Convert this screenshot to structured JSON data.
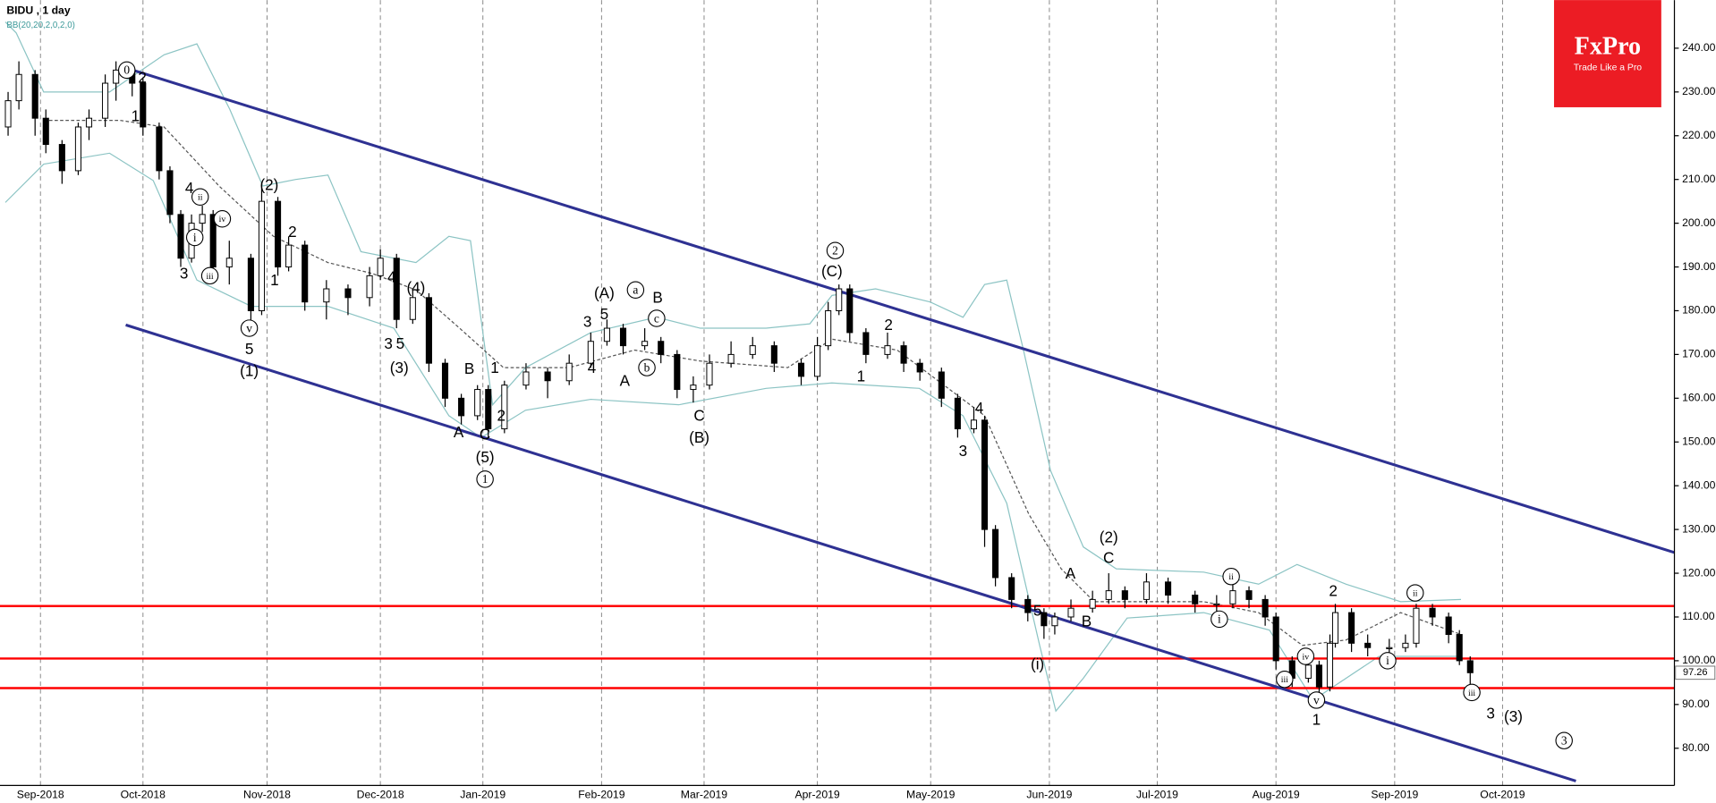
{
  "chart_data": {
    "type": "candlestick",
    "title": "BIDU , 1 day",
    "subtitle": "BB(20,20,2,0,2,0)",
    "x": [
      -6,
      -4,
      -1,
      1,
      4,
      7,
      9,
      12,
      14,
      17,
      19,
      22,
      24,
      26,
      28,
      30,
      32,
      35,
      39,
      41,
      44,
      46,
      49,
      53,
      57,
      61,
      63,
      66,
      69,
      72,
      75,
      78,
      81,
      83,
      86,
      90,
      94,
      98,
      102,
      105,
      108,
      112,
      115,
      118,
      121,
      124,
      128,
      132,
      136,
      141,
      144,
      146,
      148,
      150,
      153,
      157,
      160,
      163,
      167,
      170,
      173,
      175,
      177,
      180,
      183,
      186,
      188,
      191,
      195,
      198,
      201,
      205,
      209,
      214,
      218,
      221,
      224,
      227,
      229,
      232,
      235,
      237,
      239,
      240,
      243,
      246,
      250,
      253,
      255,
      258,
      261,
      263,
      265
    ],
    "open": [
      222,
      228,
      234,
      224,
      218,
      212,
      222,
      224,
      232,
      235,
      232,
      222,
      212,
      202,
      192,
      200,
      202,
      190,
      192,
      180,
      205,
      190,
      195,
      182,
      185,
      183,
      188,
      192,
      178,
      183,
      168,
      160,
      156,
      162,
      153,
      163,
      166,
      164,
      168,
      173,
      176,
      172,
      173,
      170,
      162,
      163,
      168,
      170,
      172,
      168,
      165,
      172,
      180,
      185,
      175,
      170,
      172,
      168,
      166,
      160,
      153,
      155,
      130,
      119,
      114,
      111,
      108,
      110,
      112,
      114,
      116,
      114,
      118,
      115,
      113,
      113,
      116,
      114,
      110,
      100,
      96,
      99,
      94,
      104,
      111,
      104,
      103,
      103,
      104,
      112,
      110,
      106,
      100
    ],
    "high": [
      230,
      237,
      235,
      226,
      219,
      223,
      226,
      234,
      237,
      236,
      233,
      223,
      213,
      203,
      202,
      204,
      203,
      196,
      193,
      208,
      206,
      197,
      196,
      187,
      186,
      190,
      194,
      193,
      185,
      184,
      169,
      161,
      163,
      163,
      164,
      168,
      167,
      170,
      175,
      178,
      177,
      176,
      174,
      171,
      165,
      170,
      173,
      174,
      173,
      169,
      174,
      182,
      186,
      186,
      176,
      175,
      173,
      169,
      167,
      161,
      158,
      156,
      131,
      120,
      115,
      112,
      111,
      114,
      116,
      120,
      117,
      120,
      119,
      116,
      115,
      118,
      117,
      115,
      111,
      101,
      100,
      100,
      106,
      113,
      112,
      106,
      105,
      106,
      113,
      113,
      111,
      107,
      101
    ],
    "low": [
      220,
      226,
      220,
      216,
      209,
      211,
      219,
      222,
      228,
      229,
      220,
      210,
      200,
      190,
      191,
      198,
      188,
      186,
      177,
      179,
      188,
      189,
      180,
      178,
      179,
      181,
      187,
      176,
      177,
      166,
      158,
      154,
      155,
      151,
      152,
      162,
      160,
      163,
      167,
      172,
      170,
      171,
      168,
      160,
      159,
      162,
      167,
      169,
      166,
      163,
      164,
      171,
      179,
      173,
      168,
      169,
      166,
      164,
      158,
      151,
      152,
      126,
      117,
      112,
      109,
      105,
      106,
      109,
      111,
      113,
      112,
      113,
      113,
      111,
      111,
      112,
      112,
      108,
      98,
      94,
      95,
      92,
      93,
      103,
      102,
      101,
      101,
      102,
      103,
      108,
      104,
      99,
      93
    ],
    "close": [
      228,
      234,
      224,
      218,
      212,
      222,
      224,
      232,
      235,
      232,
      222,
      212,
      202,
      192,
      200,
      202,
      190,
      192,
      180,
      205,
      190,
      195,
      182,
      185,
      183,
      188,
      192,
      178,
      183,
      168,
      160,
      156,
      162,
      153,
      163,
      166,
      164,
      168,
      173,
      176,
      172,
      173,
      170,
      162,
      163,
      168,
      170,
      172,
      168,
      165,
      172,
      180,
      185,
      175,
      170,
      172,
      168,
      166,
      160,
      153,
      155,
      130,
      119,
      114,
      111,
      108,
      110,
      112,
      114,
      116,
      114,
      118,
      115,
      113,
      113,
      116,
      114,
      110,
      100,
      96,
      99,
      94,
      104,
      111,
      104,
      103,
      103,
      104,
      112,
      110,
      106,
      100,
      97.26
    ],
    "up_color": "#ffffff",
    "down_color": "#000000",
    "xlim": [
      -7.5,
      302.85
    ],
    "ylim": [
      71.5,
      251
    ],
    "xticks": [
      {
        "value": 0,
        "label": "Sep-2018"
      },
      {
        "value": 19,
        "label": "Oct-2018"
      },
      {
        "value": 42,
        "label": "Nov-2018"
      },
      {
        "value": 63,
        "label": "Dec-2018"
      },
      {
        "value": 82,
        "label": "Jan-2019"
      },
      {
        "value": 104,
        "label": "Feb-2019"
      },
      {
        "value": 123,
        "label": "Mar-2019"
      },
      {
        "value": 144,
        "label": "Apr-2019"
      },
      {
        "value": 165,
        "label": "May-2019"
      },
      {
        "value": 187,
        "label": "Jun-2019"
      },
      {
        "value": 207,
        "label": "Jul-2019"
      },
      {
        "value": 229,
        "label": "Aug-2019"
      },
      {
        "value": 251,
        "label": "Sep-2019"
      },
      {
        "value": 271,
        "label": "Oct-2019"
      }
    ],
    "yticks": [
      {
        "value": 80,
        "label": "80.00"
      },
      {
        "value": 90,
        "label": "90.00"
      },
      {
        "value": 100,
        "label": "100.00"
      },
      {
        "value": 110,
        "label": "110.00"
      },
      {
        "value": 120,
        "label": "120.00"
      },
      {
        "value": 130,
        "label": "130.00"
      },
      {
        "value": 140,
        "label": "140.00"
      },
      {
        "value": 150,
        "label": "150.00"
      },
      {
        "value": 160,
        "label": "160.00"
      },
      {
        "value": 170,
        "label": "170.00"
      },
      {
        "value": 180,
        "label": "180.00"
      },
      {
        "value": 190,
        "label": "190.00"
      },
      {
        "value": 200,
        "label": "200.00"
      },
      {
        "value": 210,
        "label": "210.00"
      },
      {
        "value": 220,
        "label": "220.00"
      },
      {
        "value": 230,
        "label": "230.00"
      },
      {
        "value": 240,
        "label": "240.00"
      }
    ],
    "grid": true,
    "bands": [
      {
        "color": "#8cc4c4",
        "dashed": false,
        "x": [
          -6.5,
          -4.5,
          0.6,
          12.8,
          22.9,
          29,
          35.1,
          41.2,
          47.3,
          53.3,
          59.4,
          69.6,
          75.7,
          79.7,
          83.8,
          89.9,
          102,
          114.2,
          122.3,
          134.5,
          142.6,
          146.7,
          154.8,
          164.9,
          171,
          175,
          179.1,
          182.2,
          187.2,
          193.3,
          199.4,
          215.6,
          225.8,
          232.9,
          242,
          252.1,
          263.3
        ],
        "values": [
          246,
          243.5,
          230,
          230,
          238.5,
          241,
          226,
          208.5,
          210,
          211,
          193.5,
          191,
          197,
          196,
          158.5,
          167,
          175,
          178.5,
          176,
          176,
          177,
          183.5,
          185,
          182,
          178.5,
          186,
          187,
          171,
          143.5,
          126,
          121,
          120.25,
          117.5,
          122,
          117.5,
          113.5,
          114
        ]
      },
      {
        "color": "#555555",
        "dashed": true,
        "x": [
          0.6,
          14.8,
          22.9,
          33.1,
          43.2,
          53.3,
          61.5,
          69.6,
          77.7,
          85.8,
          98,
          110.1,
          122.3,
          138.5,
          146.7,
          158.8,
          166.9,
          175,
          183.2,
          189.2,
          195.3,
          215.6,
          225.8,
          233.9,
          242,
          252.1,
          263.3
        ],
        "values": [
          223.5,
          223.5,
          222,
          208.5,
          197,
          191,
          188.5,
          184.75,
          176,
          167,
          167,
          171,
          168.5,
          167,
          173.5,
          171,
          163.5,
          156,
          133.5,
          121,
          113.5,
          113.5,
          111,
          103.5,
          104.75,
          111,
          106
        ]
      },
      {
        "color": "#8cc4c4",
        "dashed": false,
        "x": [
          -6.5,
          0.6,
          12.8,
          20.9,
          29,
          39.1,
          53.3,
          65.5,
          75.7,
          81.7,
          89.9,
          102,
          118.3,
          134.5,
          146.7,
          162.9,
          171,
          179.1,
          185.2,
          188.2,
          193.3,
          201.4,
          215.6,
          227.8,
          235.9,
          248.1,
          263.3
        ],
        "values": [
          204.75,
          213.5,
          216,
          209.75,
          187,
          181,
          181,
          176,
          156,
          151,
          157.25,
          159.75,
          158.5,
          162.25,
          163.5,
          162.25,
          156,
          136,
          103.5,
          88.5,
          96,
          109.75,
          111,
          107,
          91,
          101,
          101
        ]
      }
    ],
    "trendlines": [
      {
        "color": "#2e3192",
        "x": [
          15.8,
          302.8
        ],
        "y": [
          235.5,
          124.75
        ]
      },
      {
        "color": "#2e3192",
        "x": [
          15.8,
          284.6
        ],
        "y": [
          176.75,
          72.5
        ]
      }
    ],
    "hlines": [
      {
        "color": "#ff0000",
        "value": 112.5
      },
      {
        "color": "#ff0000",
        "value": 100.5
      },
      {
        "color": "#ff0000",
        "value": 93.75
      }
    ],
    "annotations": [
      {
        "text": "0",
        "x": 16.0,
        "y": 235,
        "circled": true
      },
      {
        "text": "2",
        "x": 18.9,
        "y": 233.25,
        "circled": false
      },
      {
        "text": "1",
        "x": 17.6,
        "y": 224.5,
        "circled": false
      },
      {
        "text": "4",
        "x": 27.6,
        "y": 208,
        "circled": false
      },
      {
        "text": "ii",
        "x": 29.6,
        "y": 206,
        "circled": true
      },
      {
        "text": "i",
        "x": 28.6,
        "y": 196.75,
        "circled": true
      },
      {
        "text": "iv",
        "x": 33.7,
        "y": 201,
        "circled": true
      },
      {
        "text": "3",
        "x": 26.6,
        "y": 188.5,
        "circled": false
      },
      {
        "text": "iii",
        "x": 31.4,
        "y": 188,
        "circled": true
      },
      {
        "text": "(2)",
        "x": 42.4,
        "y": 208.75,
        "circled": false
      },
      {
        "text": "2",
        "x": 46.7,
        "y": 198,
        "circled": false
      },
      {
        "text": "1",
        "x": 43.4,
        "y": 187,
        "circled": false
      },
      {
        "text": "v",
        "x": 38.7,
        "y": 176,
        "circled": true
      },
      {
        "text": "5",
        "x": 38.7,
        "y": 171.25,
        "circled": false
      },
      {
        "text": "(1)",
        "x": 38.7,
        "y": 166.25,
        "circled": false
      },
      {
        "text": "4",
        "x": 65.1,
        "y": 187.75,
        "circled": false
      },
      {
        "text": "(4)",
        "x": 69.6,
        "y": 185.25,
        "circled": false
      },
      {
        "text": "3",
        "x": 64.5,
        "y": 172.5,
        "circled": false
      },
      {
        "text": "5",
        "x": 66.7,
        "y": 172.5,
        "circled": false
      },
      {
        "text": "(3)",
        "x": 66.5,
        "y": 167,
        "circled": false
      },
      {
        "text": "B",
        "x": 79.5,
        "y": 166.75,
        "circled": false
      },
      {
        "text": "1",
        "x": 84.2,
        "y": 167,
        "circled": false
      },
      {
        "text": "2",
        "x": 85.4,
        "y": 156,
        "circled": false
      },
      {
        "text": "A",
        "x": 77.5,
        "y": 152.25,
        "circled": false
      },
      {
        "text": "C",
        "x": 82.4,
        "y": 151.75,
        "circled": false
      },
      {
        "text": "(5)",
        "x": 82.4,
        "y": 146.5,
        "circled": false
      },
      {
        "text": "1",
        "x": 82.4,
        "y": 141.5,
        "circled": true
      },
      {
        "text": "(A)",
        "x": 104.5,
        "y": 184,
        "circled": false
      },
      {
        "text": "5",
        "x": 104.5,
        "y": 179.25,
        "circled": false
      },
      {
        "text": "3",
        "x": 101.4,
        "y": 177.5,
        "circled": false
      },
      {
        "text": "4",
        "x": 102.2,
        "y": 167,
        "circled": false
      },
      {
        "text": "B",
        "x": 114.4,
        "y": 183,
        "circled": false
      },
      {
        "text": "a",
        "x": 110.3,
        "y": 184.75,
        "circled": true
      },
      {
        "text": "c",
        "x": 114.2,
        "y": 178.25,
        "circled": true
      },
      {
        "text": "A",
        "x": 108.3,
        "y": 164,
        "circled": false
      },
      {
        "text": "b",
        "x": 112.4,
        "y": 167,
        "circled": true
      },
      {
        "text": "C",
        "x": 122.1,
        "y": 156,
        "circled": false
      },
      {
        "text": "(B)",
        "x": 122.1,
        "y": 151,
        "circled": false
      },
      {
        "text": "2",
        "x": 147.3,
        "y": 193.75,
        "circled": true
      },
      {
        "text": "(C)",
        "x": 146.7,
        "y": 189,
        "circled": false
      },
      {
        "text": "2",
        "x": 157.2,
        "y": 176.75,
        "circled": false
      },
      {
        "text": "1",
        "x": 152.1,
        "y": 165,
        "circled": false
      },
      {
        "text": "4",
        "x": 174.0,
        "y": 157.75,
        "circled": false
      },
      {
        "text": "3",
        "x": 171.0,
        "y": 148,
        "circled": false
      },
      {
        "text": "A",
        "x": 190.9,
        "y": 120,
        "circled": false
      },
      {
        "text": "(2)",
        "x": 198.0,
        "y": 128.25,
        "circled": false
      },
      {
        "text": "C",
        "x": 198.0,
        "y": 123.5,
        "circled": false
      },
      {
        "text": "B",
        "x": 193.9,
        "y": 109,
        "circled": false
      },
      {
        "text": "5",
        "x": 184.8,
        "y": 111.5,
        "circled": false
      },
      {
        "text": "(i)",
        "x": 184.8,
        "y": 99.25,
        "circled": false
      },
      {
        "text": "ii",
        "x": 220.7,
        "y": 119.25,
        "circled": true
      },
      {
        "text": "i",
        "x": 218.5,
        "y": 109.5,
        "circled": true
      },
      {
        "text": "2",
        "x": 239.6,
        "y": 116,
        "circled": false
      },
      {
        "text": "iv",
        "x": 234.5,
        "y": 101,
        "circled": true
      },
      {
        "text": "iii",
        "x": 230.6,
        "y": 95.75,
        "circled": true
      },
      {
        "text": "v",
        "x": 236.5,
        "y": 91,
        "circled": true
      },
      {
        "text": "1",
        "x": 236.5,
        "y": 86.5,
        "circled": false
      },
      {
        "text": "ii",
        "x": 254.8,
        "y": 115.5,
        "circled": true
      },
      {
        "text": "i",
        "x": 249.7,
        "y": 100,
        "circled": true
      },
      {
        "text": "iii",
        "x": 265.3,
        "y": 92.75,
        "circled": true
      },
      {
        "text": "3",
        "x": 268.8,
        "y": 88,
        "circled": false
      },
      {
        "text": "(3)",
        "x": 273.0,
        "y": 87.25,
        "circled": false
      },
      {
        "text": "3",
        "x": 282.4,
        "y": 81.75,
        "circled": true
      }
    ],
    "logo": {
      "brand": "FxPro",
      "slogan": "Trade Like a Pro",
      "color": "#ec1c24"
    }
  }
}
